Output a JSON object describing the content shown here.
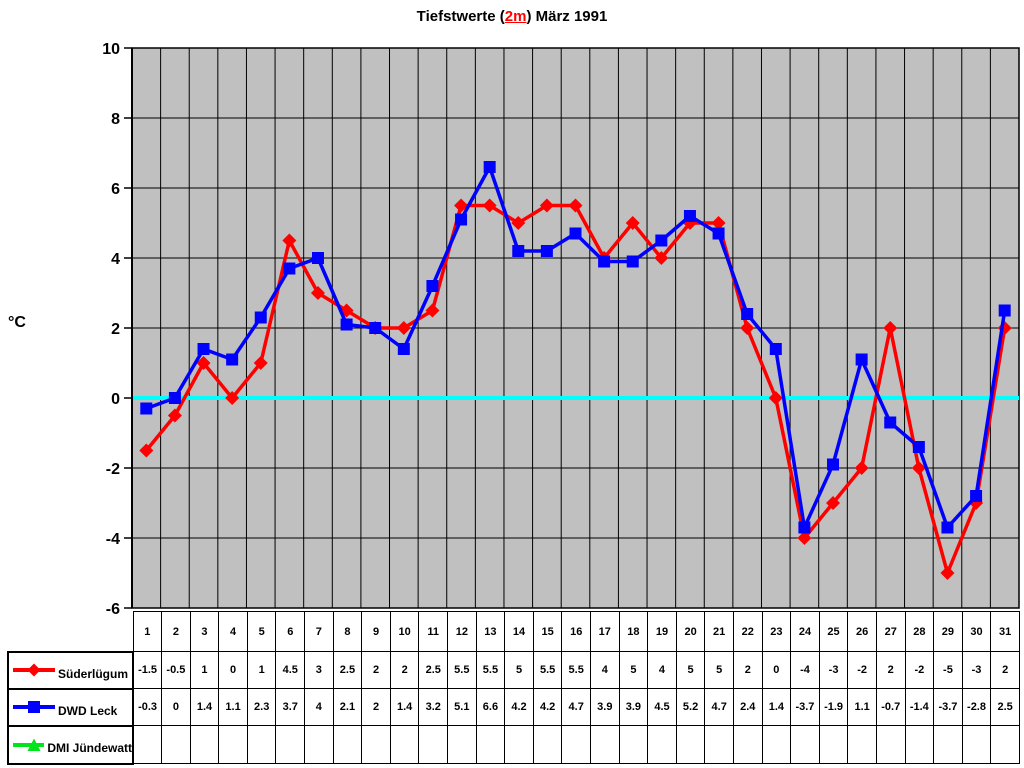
{
  "title": {
    "prefix": "Tiefstwerte (",
    "highlight": "2m",
    "suffix": ") März 1991",
    "highlight_color": "#ff0000"
  },
  "chart_data": {
    "type": "line",
    "title": "Tiefstwerte (2m) März 1991",
    "xlabel": "",
    "ylabel": "°C",
    "ylim": [
      -6,
      10
    ],
    "yticks": [
      10,
      8,
      6,
      4,
      2,
      0,
      -2,
      -4,
      -6
    ],
    "grid": true,
    "plot_bg_color": "#c0c0c0",
    "gridline_color": "#000000",
    "zero_line_color": "#00ffff",
    "legend_position": "bottom-left-table",
    "categories": [
      1,
      2,
      3,
      4,
      5,
      6,
      7,
      8,
      9,
      10,
      11,
      12,
      13,
      14,
      15,
      16,
      17,
      18,
      19,
      20,
      21,
      22,
      23,
      24,
      25,
      26,
      27,
      28,
      29,
      30,
      31
    ],
    "series": [
      {
        "name": "Süderlügum",
        "color": "#ff0000",
        "marker": "diamond",
        "values": [
          -1.5,
          -0.5,
          1,
          0,
          1,
          4.5,
          3,
          2.5,
          2,
          2,
          2.5,
          5.5,
          5.5,
          5,
          5.5,
          5.5,
          4,
          5,
          4,
          5,
          5,
          2,
          0,
          -4,
          -3,
          -2,
          2,
          -2,
          -5,
          -3,
          2
        ]
      },
      {
        "name": "DWD Leck",
        "color": "#0000ff",
        "marker": "square",
        "values": [
          -0.3,
          0,
          1.4,
          1.1,
          2.3,
          3.7,
          4,
          2.1,
          2,
          1.4,
          3.2,
          5.1,
          6.6,
          4.2,
          4.2,
          4.7,
          3.9,
          3.9,
          4.5,
          5.2,
          4.7,
          2.4,
          1.4,
          -3.7,
          -1.9,
          1.1,
          -0.7,
          -1.4,
          -3.7,
          -2.8,
          2.5
        ]
      },
      {
        "name": "DMI Jündewatt",
        "color": "#00e41c",
        "marker": "triangle",
        "values": []
      }
    ]
  }
}
